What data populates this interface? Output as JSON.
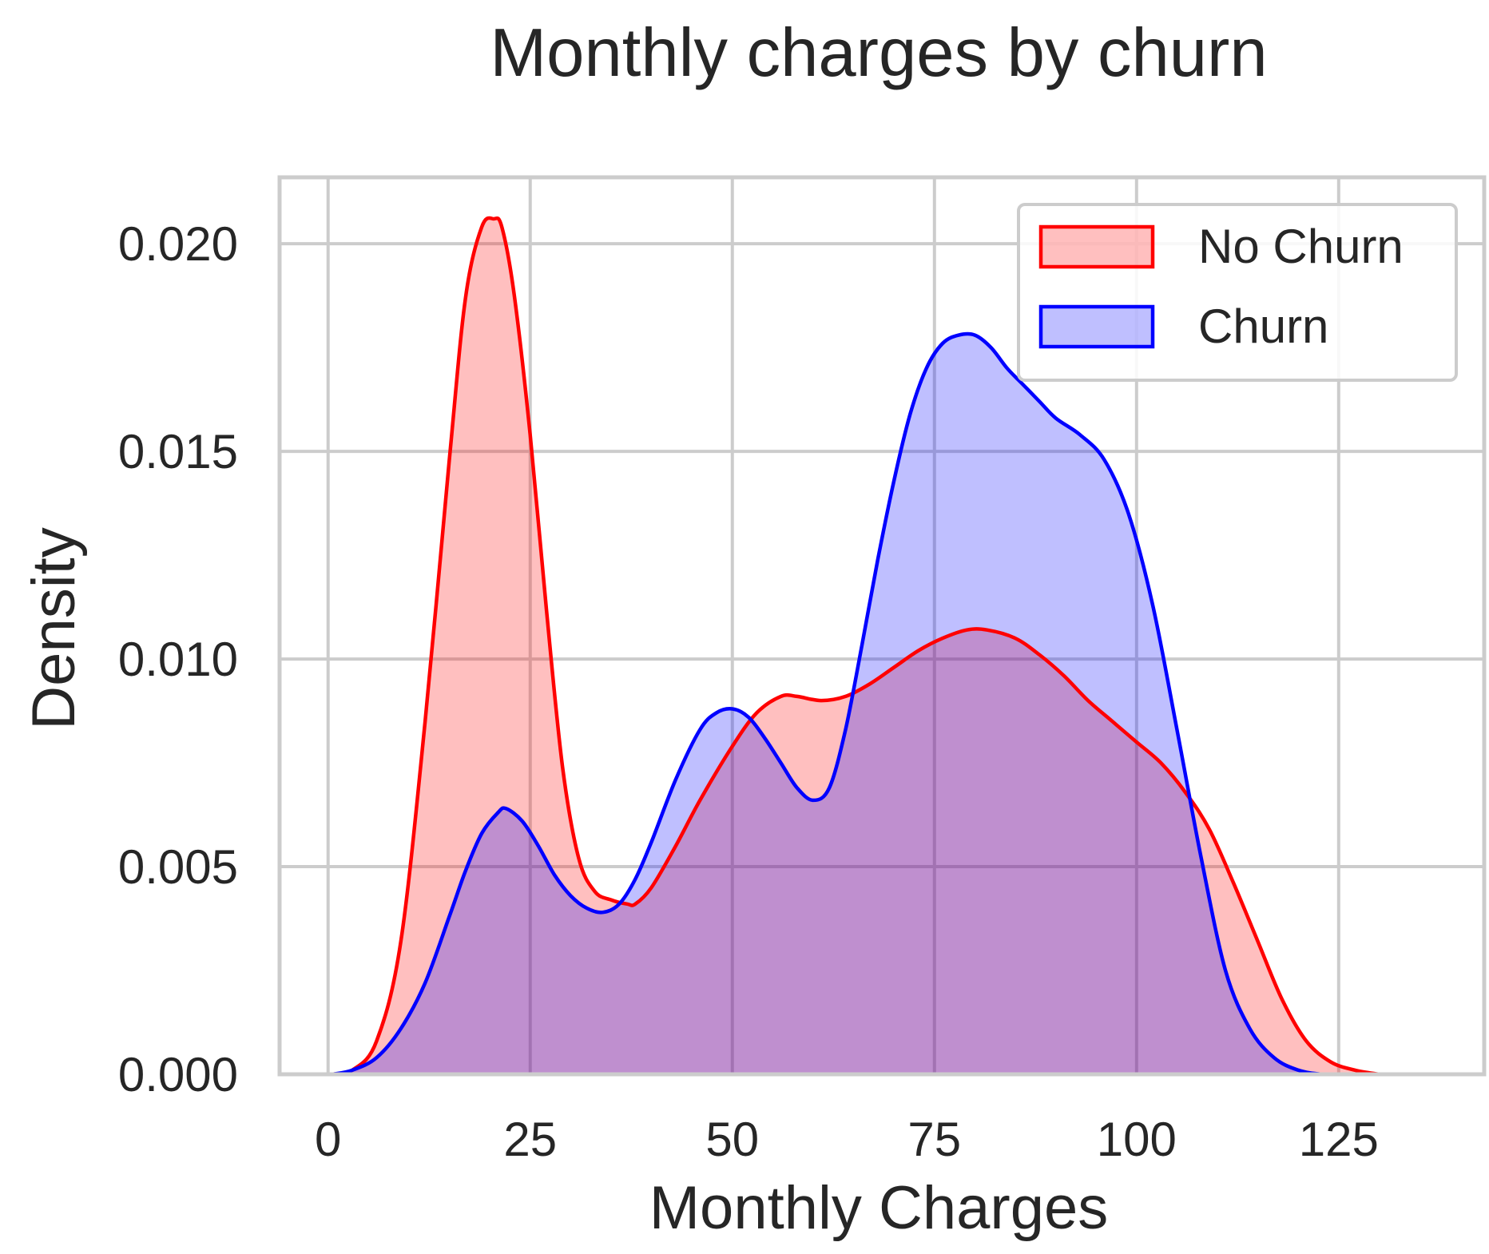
{
  "chart_data": {
    "type": "area",
    "title": "Monthly charges by churn",
    "xlabel": "Monthly Charges",
    "ylabel": "Density",
    "xlim": [
      -6,
      143
    ],
    "ylim": [
      0,
      0.0216
    ],
    "xticks": [
      0,
      25,
      50,
      75,
      100,
      125
    ],
    "xtick_labels": [
      "0",
      "25",
      "50",
      "75",
      "100",
      "125"
    ],
    "yticks": [
      0,
      0.005,
      0.01,
      0.015,
      0.02
    ],
    "ytick_labels": [
      "0.000",
      "0.005",
      "0.010",
      "0.015",
      "0.020"
    ],
    "grid": true,
    "legend_position": "top-right",
    "series": [
      {
        "name": "No Churn",
        "color": "#ff0000",
        "fill_opacity": 0.25,
        "x": [
          0.5,
          3,
          6,
          9,
          12,
          15,
          17,
          19,
          20.5,
          21.5,
          23,
          25,
          27,
          29,
          31,
          33,
          35,
          37,
          38,
          40,
          43,
          46,
          50,
          53,
          56,
          58,
          61,
          64,
          67,
          70,
          73,
          76,
          79,
          81.5,
          85,
          88,
          91,
          94,
          97,
          100,
          103,
          106,
          109,
          112,
          115,
          118,
          121,
          124,
          127,
          130
        ],
        "y": [
          0.0,
          0.0001,
          0.0008,
          0.0032,
          0.0085,
          0.0148,
          0.0187,
          0.0204,
          0.0206,
          0.0204,
          0.0188,
          0.0154,
          0.0112,
          0.0074,
          0.0052,
          0.0044,
          0.0042,
          0.0041,
          0.0041,
          0.0045,
          0.0055,
          0.0066,
          0.0079,
          0.0087,
          0.0091,
          0.0091,
          0.009,
          0.0091,
          0.0094,
          0.0098,
          0.0102,
          0.0105,
          0.0107,
          0.0107,
          0.0105,
          0.0101,
          0.0096,
          0.009,
          0.0085,
          0.008,
          0.0075,
          0.0068,
          0.0059,
          0.0046,
          0.0032,
          0.0018,
          0.0008,
          0.0003,
          0.0001,
          0.0
        ]
      },
      {
        "name": "Churn",
        "color": "#0000ff",
        "fill_opacity": 0.25,
        "x": [
          0.5,
          3,
          6,
          9,
          12,
          15,
          17,
          19,
          21,
          22,
          24,
          26,
          28,
          30,
          32,
          34,
          36,
          38,
          40,
          43,
          46,
          48,
          50,
          52,
          54,
          56,
          58,
          60,
          62,
          64,
          66,
          68,
          70,
          72,
          74,
          76,
          78,
          80,
          82,
          84,
          86,
          88,
          90,
          93,
          96,
          99,
          102,
          105,
          108,
          111,
          114,
          117,
          120,
          123,
          126,
          129
        ],
        "y": [
          0.0,
          0.0001,
          0.0004,
          0.0011,
          0.0022,
          0.0038,
          0.0049,
          0.0058,
          0.0063,
          0.0064,
          0.0061,
          0.0055,
          0.0048,
          0.0043,
          0.004,
          0.0039,
          0.0041,
          0.0047,
          0.0056,
          0.0071,
          0.0083,
          0.0087,
          0.0088,
          0.0086,
          0.0081,
          0.0075,
          0.0069,
          0.0066,
          0.0069,
          0.0083,
          0.0103,
          0.0124,
          0.0143,
          0.0159,
          0.017,
          0.0176,
          0.0178,
          0.0178,
          0.0175,
          0.017,
          0.0166,
          0.0162,
          0.0158,
          0.0154,
          0.0148,
          0.0135,
          0.0113,
          0.0083,
          0.0052,
          0.0025,
          0.0011,
          0.0004,
          0.0001,
          0.0,
          0.0,
          0.0
        ]
      }
    ]
  }
}
